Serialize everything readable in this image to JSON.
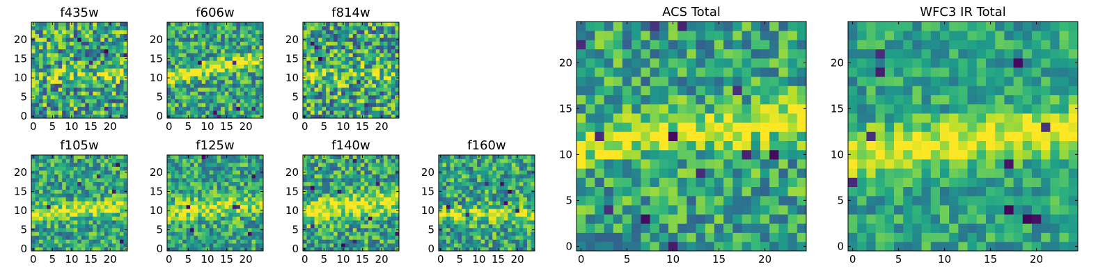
{
  "figure": {
    "colormap": "viridis",
    "colors": {
      "low": "#440154",
      "mid": "#21918c",
      "high": "#fde725",
      "frame": "#000000",
      "background": "#ffffff"
    }
  },
  "chart_data": [
    {
      "type": "heatmap",
      "title": "f435w",
      "grid_size": 25,
      "x_ticks": [
        "0",
        "5",
        "10",
        "15",
        "20"
      ],
      "y_ticks": [
        "0",
        "5",
        "10",
        "15",
        "20"
      ],
      "xlim": [
        0,
        24
      ],
      "ylim": [
        0,
        24
      ],
      "structure": {
        "band_center": 11,
        "band_slope": 0.0,
        "band_width": 2.0,
        "band_strength": 0.15,
        "noise": 0.75,
        "dark_spots": 5,
        "seed": 11
      }
    },
    {
      "type": "heatmap",
      "title": "f606w",
      "grid_size": 25,
      "x_ticks": [
        "0",
        "5",
        "10",
        "15",
        "20"
      ],
      "y_ticks": [
        "0",
        "5",
        "10",
        "15",
        "20"
      ],
      "xlim": [
        0,
        24
      ],
      "ylim": [
        0,
        24
      ],
      "structure": {
        "band_center": 10,
        "band_slope": 0.22,
        "band_width": 1.8,
        "band_strength": 0.45,
        "noise": 0.6,
        "dark_spots": 6,
        "seed": 23
      }
    },
    {
      "type": "heatmap",
      "title": "f814w",
      "grid_size": 25,
      "x_ticks": [
        "0",
        "5",
        "10",
        "15",
        "20"
      ],
      "y_ticks": [
        "0",
        "5",
        "10",
        "15",
        "20"
      ],
      "xlim": [
        0,
        24
      ],
      "ylim": [
        0,
        24
      ],
      "structure": {
        "band_center": 10,
        "band_slope": 0.05,
        "band_width": 2.0,
        "band_strength": 0.2,
        "noise": 0.75,
        "dark_spots": 5,
        "seed": 37
      }
    },
    {
      "type": "heatmap",
      "title": "f105w",
      "grid_size": 25,
      "x_ticks": [
        "0",
        "5",
        "10",
        "15",
        "20"
      ],
      "y_ticks": [
        "0",
        "5",
        "10",
        "15",
        "20"
      ],
      "xlim": [
        0,
        24
      ],
      "ylim": [
        0,
        24
      ],
      "structure": {
        "band_center": 9,
        "band_slope": 0.1,
        "band_width": 2.0,
        "band_strength": 0.4,
        "noise": 0.55,
        "dark_spots": 6,
        "seed": 41
      }
    },
    {
      "type": "heatmap",
      "title": "f125w",
      "grid_size": 25,
      "x_ticks": [
        "0",
        "5",
        "10",
        "15",
        "20"
      ],
      "y_ticks": [
        "0",
        "5",
        "10",
        "15",
        "20"
      ],
      "xlim": [
        0,
        24
      ],
      "ylim": [
        0,
        24
      ],
      "structure": {
        "band_center": 10,
        "band_slope": 0.08,
        "band_width": 2.5,
        "band_strength": 0.35,
        "noise": 0.55,
        "dark_spots": 7,
        "seed": 53
      }
    },
    {
      "type": "heatmap",
      "title": "f140w",
      "grid_size": 25,
      "x_ticks": [
        "0",
        "5",
        "10",
        "15",
        "20"
      ],
      "y_ticks": [
        "0",
        "5",
        "10",
        "15",
        "20"
      ],
      "xlim": [
        0,
        24
      ],
      "ylim": [
        0,
        24
      ],
      "structure": {
        "band_center": 10,
        "band_slope": 0.12,
        "band_width": 3.0,
        "band_strength": 0.4,
        "noise": 0.6,
        "dark_spots": 9,
        "seed": 67
      }
    },
    {
      "type": "heatmap",
      "title": "f160w",
      "grid_size": 25,
      "x_ticks": [
        "0",
        "5",
        "10",
        "15",
        "20"
      ],
      "y_ticks": [
        "0",
        "5",
        "10",
        "15",
        "20"
      ],
      "xlim": [
        0,
        24
      ],
      "ylim": [
        0,
        24
      ],
      "structure": {
        "band_center": 9,
        "band_slope": 0.0,
        "band_width": 2.0,
        "band_strength": 0.3,
        "noise": 0.6,
        "dark_spots": 7,
        "seed": 79
      }
    },
    {
      "type": "heatmap",
      "title": "ACS Total",
      "grid_size": 25,
      "x_ticks": [
        "0",
        "5",
        "10",
        "15",
        "20"
      ],
      "y_ticks": [
        "0",
        "5",
        "10",
        "15",
        "20"
      ],
      "xlim": [
        0,
        24
      ],
      "ylim": [
        0,
        24
      ],
      "structure": {
        "band_center": 11,
        "band_slope": 0.12,
        "band_width": 2.2,
        "band_strength": 0.35,
        "noise": 0.55,
        "dark_spots": 12,
        "seed": 97
      }
    },
    {
      "type": "heatmap",
      "title": "WFC3 IR Total",
      "grid_size": 25,
      "x_ticks": [
        "0",
        "5",
        "10",
        "15",
        "20"
      ],
      "y_ticks": [
        "0",
        "5",
        "10",
        "15",
        "20"
      ],
      "xlim": [
        0,
        24
      ],
      "ylim": [
        0,
        24
      ],
      "structure": {
        "band_center": 10,
        "band_slope": 0.12,
        "band_width": 2.5,
        "band_strength": 0.4,
        "noise": 0.4,
        "dark_spots": 10,
        "seed": 113
      }
    }
  ]
}
